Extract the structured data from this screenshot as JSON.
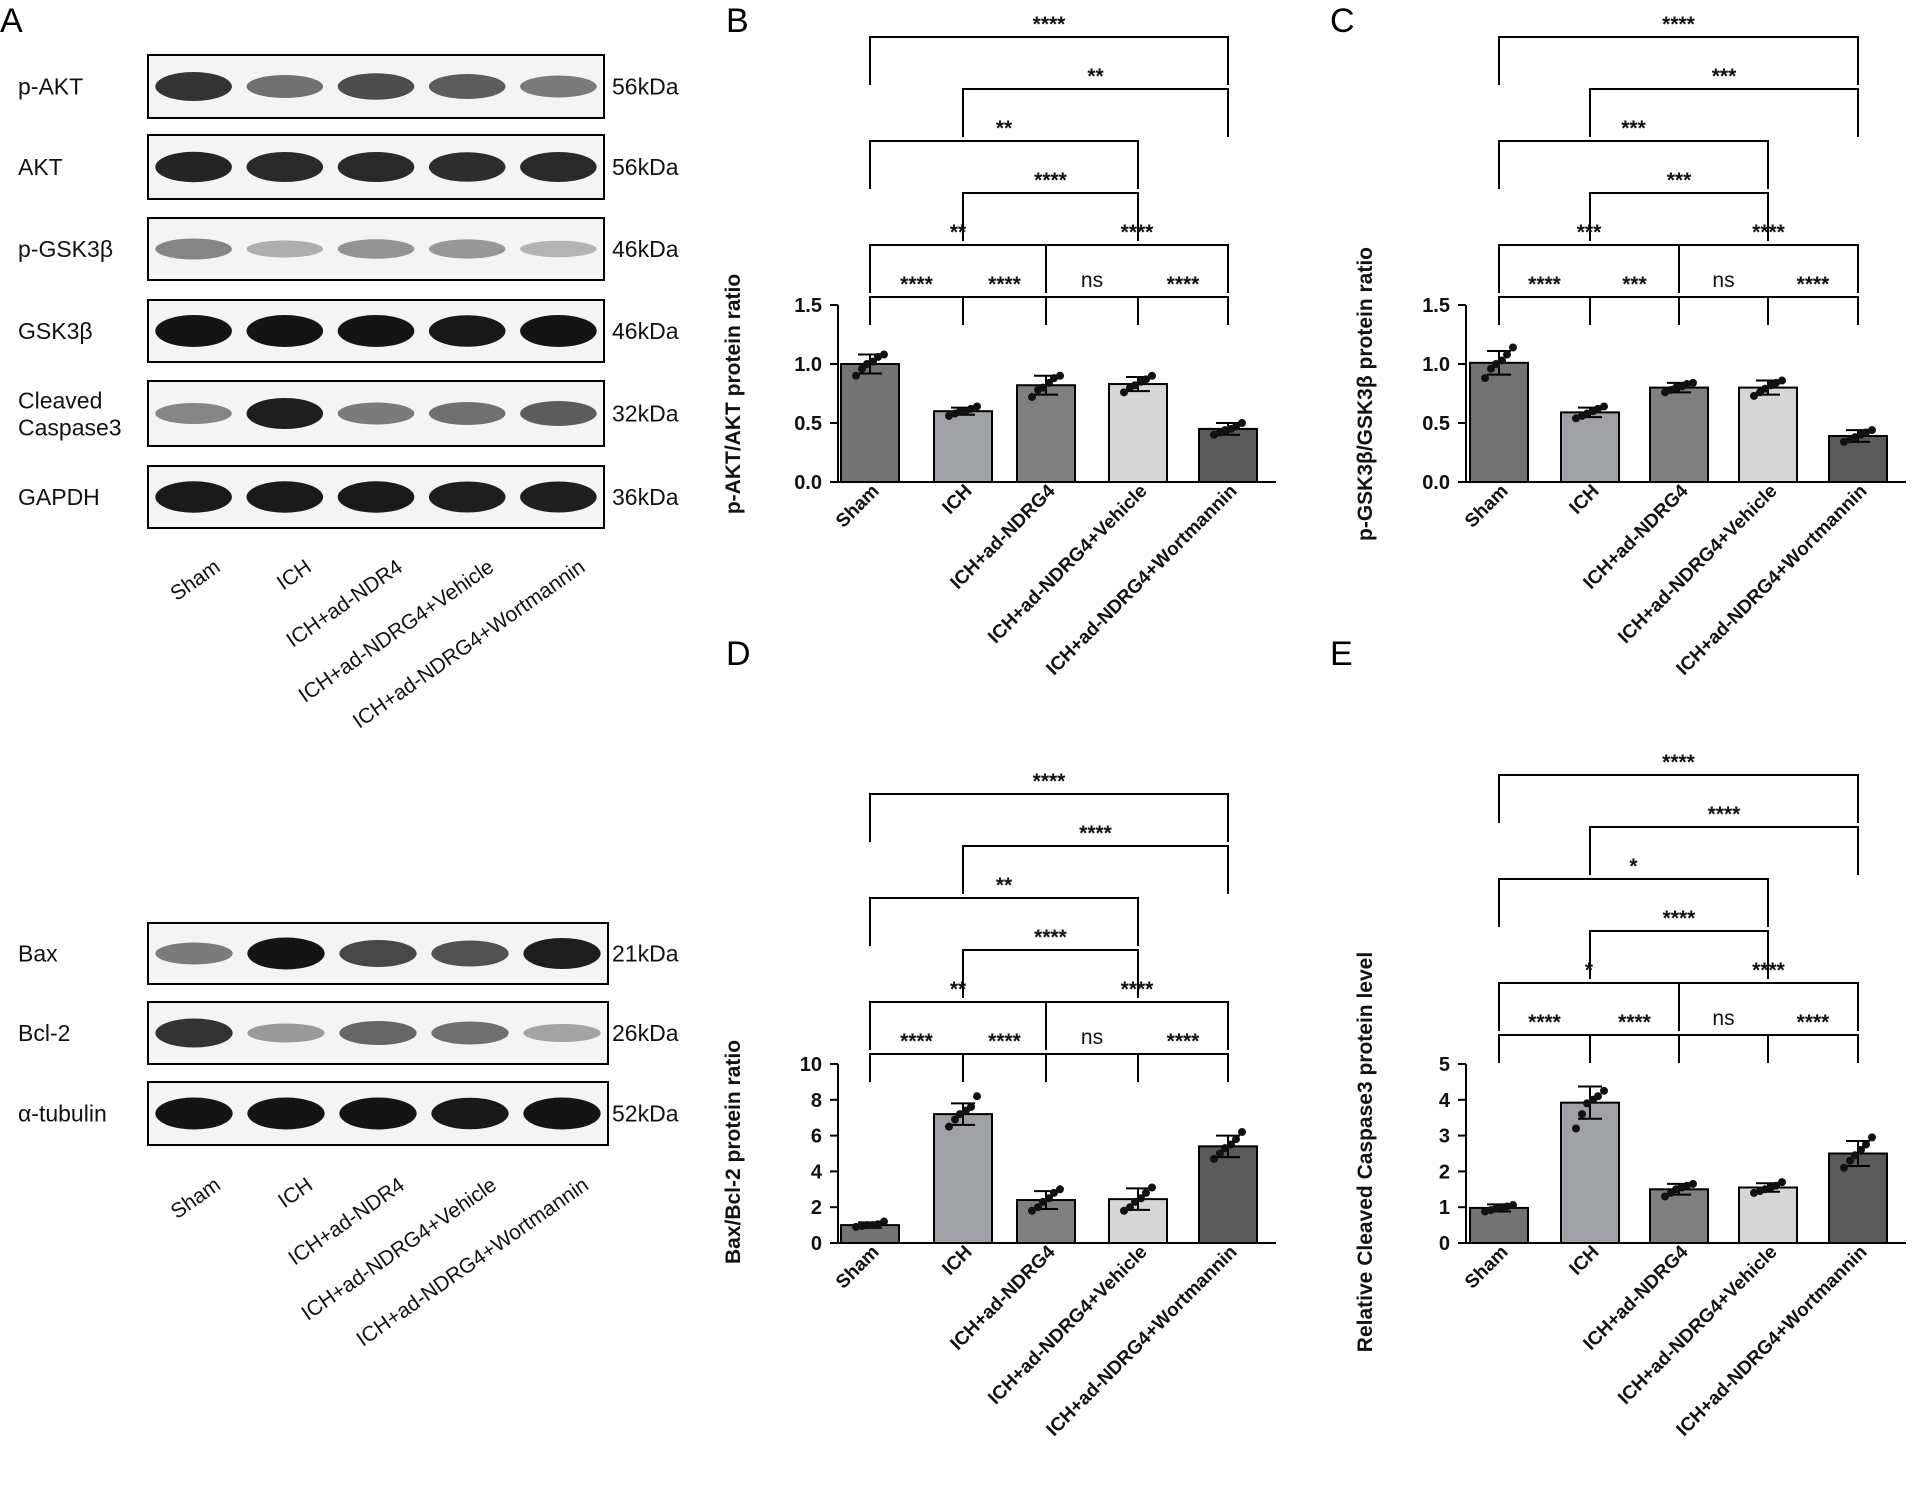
{
  "panel_labels": {
    "a": "A",
    "b": "B",
    "c": "C",
    "d": "D",
    "e": "E"
  },
  "blots": [
    {
      "rows": [
        {
          "label": "p-AKT",
          "kda": "56kDa",
          "intensities": [
            0.85,
            0.55,
            0.72,
            0.65,
            0.5
          ]
        },
        {
          "label": "AKT",
          "kda": "56kDa",
          "intensities": [
            0.92,
            0.9,
            0.9,
            0.88,
            0.9
          ]
        },
        {
          "label": "p-GSK3β",
          "kda": "46kDa",
          "intensities": [
            0.45,
            0.25,
            0.38,
            0.36,
            0.22
          ]
        },
        {
          "label": "GSK3β",
          "kda": "46kDa",
          "intensities": [
            1.0,
            1.0,
            1.0,
            0.98,
            1.0
          ]
        },
        {
          "label": "Cleaved\nCaspase3",
          "kda": "32kDa",
          "intensities": [
            0.45,
            0.95,
            0.5,
            0.55,
            0.65
          ]
        },
        {
          "label": "GAPDH",
          "kda": "36kDa",
          "intensities": [
            0.97,
            0.97,
            0.97,
            0.95,
            0.95
          ]
        }
      ],
      "lanes": [
        "Sham",
        "ICH",
        "ICH+ad-NDR4",
        "ICH+ad-NDRG4+Vehicle",
        "ICH+ad-NDRG4+Wortmannin"
      ]
    },
    {
      "rows": [
        {
          "label": "Bax",
          "kda": "21kDa",
          "intensities": [
            0.5,
            1.0,
            0.75,
            0.7,
            0.95
          ]
        },
        {
          "label": "Bcl-2",
          "kda": "26kDa",
          "intensities": [
            0.85,
            0.35,
            0.6,
            0.55,
            0.3
          ]
        },
        {
          "label": "α-tubulin",
          "kda": "52kDa",
          "intensities": [
            1.0,
            1.0,
            1.0,
            0.98,
            1.0
          ]
        }
      ],
      "lanes": [
        "Sham",
        "ICH",
        "ICH+ad-NDR4",
        "ICH+ad-NDRG4+Vehicle",
        "ICH+ad-NDRG4+Wortmannin"
      ]
    }
  ],
  "bar_colors": [
    "#737373",
    "#a0a0a7",
    "#7f7f7f",
    "#d6d6d6",
    "#5a5a5a"
  ],
  "chart_data": [
    {
      "type": "bar",
      "title": "",
      "ylabel": "p-AKT/AKT protein ratio",
      "xlabel": "",
      "categories": [
        "Sham",
        "ICH",
        "ICH+ad-NDRG4",
        "ICH+ad-NDRG4+Vehicle",
        "ICH+ad-NDRG4+Wortmannin"
      ],
      "values": [
        1.0,
        0.6,
        0.82,
        0.83,
        0.45
      ],
      "errors": [
        0.08,
        0.03,
        0.08,
        0.06,
        0.05
      ],
      "points": [
        [
          0.9,
          0.96,
          1.0,
          1.02,
          1.06,
          1.08
        ],
        [
          0.56,
          0.58,
          0.6,
          0.6,
          0.62,
          0.64
        ],
        [
          0.72,
          0.78,
          0.8,
          0.84,
          0.88,
          0.9
        ],
        [
          0.76,
          0.8,
          0.82,
          0.85,
          0.87,
          0.9
        ],
        [
          0.4,
          0.42,
          0.44,
          0.45,
          0.47,
          0.5
        ]
      ],
      "ylim": [
        0,
        1.5
      ],
      "yticks": [
        "0.0",
        "0.5",
        "1.0",
        "1.5"
      ],
      "grid": false,
      "comparisons": [
        {
          "from": 0,
          "to": 4,
          "label": "****"
        },
        {
          "from": 1,
          "to": 4,
          "label": "**"
        },
        {
          "from": 0,
          "to": 3,
          "label": "**"
        },
        {
          "from": 1,
          "to": 3,
          "label": "****"
        },
        {
          "from": 0,
          "to": 2,
          "label": "**"
        },
        {
          "from": 2,
          "to": 4,
          "label": "****"
        },
        {
          "from": 0,
          "to": 1,
          "label": "****"
        },
        {
          "from": 1,
          "to": 2,
          "label": "****"
        },
        {
          "from": 2,
          "to": 3,
          "label": "ns"
        },
        {
          "from": 3,
          "to": 4,
          "label": "****"
        }
      ]
    },
    {
      "type": "bar",
      "title": "",
      "ylabel": "p-GSK3β/GSK3β protein ratio",
      "xlabel": "",
      "categories": [
        "Sham",
        "ICH",
        "ICH+ad-NDRG4",
        "ICH+ad-NDRG4+Vehicle",
        "ICH+ad-NDRG4+Wortmannin"
      ],
      "values": [
        1.01,
        0.59,
        0.8,
        0.8,
        0.39
      ],
      "errors": [
        0.1,
        0.04,
        0.04,
        0.06,
        0.05
      ],
      "points": [
        [
          0.88,
          0.96,
          1.0,
          1.03,
          1.08,
          1.14
        ],
        [
          0.54,
          0.56,
          0.58,
          0.6,
          0.62,
          0.64
        ],
        [
          0.76,
          0.78,
          0.8,
          0.81,
          0.83,
          0.84
        ],
        [
          0.73,
          0.76,
          0.79,
          0.82,
          0.84,
          0.86
        ],
        [
          0.34,
          0.36,
          0.38,
          0.4,
          0.42,
          0.44
        ]
      ],
      "ylim": [
        0,
        1.5
      ],
      "yticks": [
        "0.0",
        "0.5",
        "1.0",
        "1.5"
      ],
      "grid": false,
      "comparisons": [
        {
          "from": 0,
          "to": 4,
          "label": "****"
        },
        {
          "from": 1,
          "to": 4,
          "label": "***"
        },
        {
          "from": 0,
          "to": 3,
          "label": "***"
        },
        {
          "from": 1,
          "to": 3,
          "label": "***"
        },
        {
          "from": 0,
          "to": 2,
          "label": "***"
        },
        {
          "from": 2,
          "to": 4,
          "label": "****"
        },
        {
          "from": 0,
          "to": 1,
          "label": "****"
        },
        {
          "from": 1,
          "to": 2,
          "label": "***"
        },
        {
          "from": 2,
          "to": 3,
          "label": "ns"
        },
        {
          "from": 3,
          "to": 4,
          "label": "****"
        }
      ]
    },
    {
      "type": "bar",
      "title": "",
      "ylabel": "Bax/Bcl-2 protein ratio",
      "xlabel": "",
      "categories": [
        "Sham",
        "ICH",
        "ICH+ad-NDRG4",
        "ICH+ad-NDRG4+Vehicle",
        "ICH+ad-NDRG4+Wortmannin"
      ],
      "values": [
        1.0,
        7.2,
        2.4,
        2.45,
        5.4
      ],
      "errors": [
        0.15,
        0.6,
        0.5,
        0.6,
        0.6
      ],
      "points": [
        [
          0.9,
          0.95,
          1.0,
          1.0,
          1.05,
          1.2
        ],
        [
          6.5,
          6.9,
          7.2,
          7.4,
          7.6,
          8.2
        ],
        [
          1.8,
          2.0,
          2.3,
          2.5,
          2.8,
          3.0
        ],
        [
          1.8,
          2.0,
          2.3,
          2.5,
          2.8,
          3.1
        ],
        [
          4.7,
          5.0,
          5.3,
          5.5,
          5.8,
          6.2
        ]
      ],
      "ylim": [
        0,
        10
      ],
      "yticks": [
        "0",
        "2",
        "4",
        "6",
        "8",
        "10"
      ],
      "grid": false,
      "comparisons": [
        {
          "from": 0,
          "to": 4,
          "label": "****"
        },
        {
          "from": 1,
          "to": 4,
          "label": "****"
        },
        {
          "from": 0,
          "to": 3,
          "label": "**"
        },
        {
          "from": 1,
          "to": 3,
          "label": "****"
        },
        {
          "from": 0,
          "to": 2,
          "label": "**"
        },
        {
          "from": 2,
          "to": 4,
          "label": "****"
        },
        {
          "from": 0,
          "to": 1,
          "label": "****"
        },
        {
          "from": 1,
          "to": 2,
          "label": "****"
        },
        {
          "from": 2,
          "to": 3,
          "label": "ns"
        },
        {
          "from": 3,
          "to": 4,
          "label": "****"
        }
      ]
    },
    {
      "type": "bar",
      "title": "",
      "ylabel": "Relative Cleaved Caspase3 protein level",
      "xlabel": "",
      "categories": [
        "Sham",
        "ICH",
        "ICH+ad-NDRG4",
        "ICH+ad-NDRG4+Vehicle",
        "ICH+ad-NDRG4+Wortmannin"
      ],
      "values": [
        0.98,
        3.92,
        1.5,
        1.55,
        2.5
      ],
      "errors": [
        0.1,
        0.45,
        0.15,
        0.12,
        0.35
      ],
      "points": [
        [
          0.88,
          0.92,
          0.96,
          1.0,
          1.02,
          1.06
        ],
        [
          3.2,
          3.6,
          3.9,
          4.0,
          4.1,
          4.25
        ],
        [
          1.3,
          1.4,
          1.5,
          1.55,
          1.6,
          1.65
        ],
        [
          1.4,
          1.45,
          1.5,
          1.55,
          1.6,
          1.7
        ],
        [
          2.1,
          2.3,
          2.45,
          2.6,
          2.75,
          2.95
        ]
      ],
      "ylim": [
        0,
        5
      ],
      "yticks": [
        "0",
        "1",
        "2",
        "3",
        "4",
        "5"
      ],
      "grid": false,
      "comparisons": [
        {
          "from": 0,
          "to": 4,
          "label": "****"
        },
        {
          "from": 1,
          "to": 4,
          "label": "****"
        },
        {
          "from": 0,
          "to": 3,
          "label": "*"
        },
        {
          "from": 1,
          "to": 3,
          "label": "****"
        },
        {
          "from": 0,
          "to": 2,
          "label": "*"
        },
        {
          "from": 2,
          "to": 4,
          "label": "****"
        },
        {
          "from": 0,
          "to": 1,
          "label": "****"
        },
        {
          "from": 1,
          "to": 2,
          "label": "****"
        },
        {
          "from": 2,
          "to": 3,
          "label": "ns"
        },
        {
          "from": 3,
          "to": 4,
          "label": "****"
        }
      ]
    }
  ]
}
